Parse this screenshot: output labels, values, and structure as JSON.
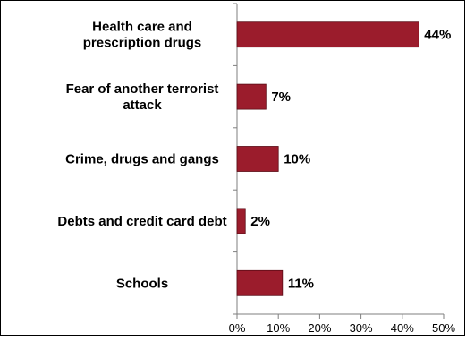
{
  "chart_data": {
    "type": "bar",
    "orientation": "horizontal",
    "categories": [
      [
        "Health care and",
        "prescription drugs"
      ],
      [
        "Fear of another terrorist",
        "attack"
      ],
      [
        "Crime, drugs and gangs"
      ],
      [
        "Debts and credit card debt"
      ],
      [
        "Schools"
      ]
    ],
    "values": [
      44,
      7,
      10,
      2,
      11
    ],
    "data_labels": [
      "44%",
      "7%",
      "10%",
      "2%",
      "11%"
    ],
    "xlim": [
      0,
      50
    ],
    "x_ticks": [
      0,
      10,
      20,
      30,
      40,
      50
    ],
    "x_tick_labels": [
      "0%",
      "10%",
      "20%",
      "30%",
      "40%",
      "50%"
    ],
    "title": "",
    "xlabel": "",
    "ylabel": "",
    "grid": false,
    "legend": "none",
    "bar_color": "#9B1C2C",
    "bar_edge_color": "#5a0c16"
  }
}
